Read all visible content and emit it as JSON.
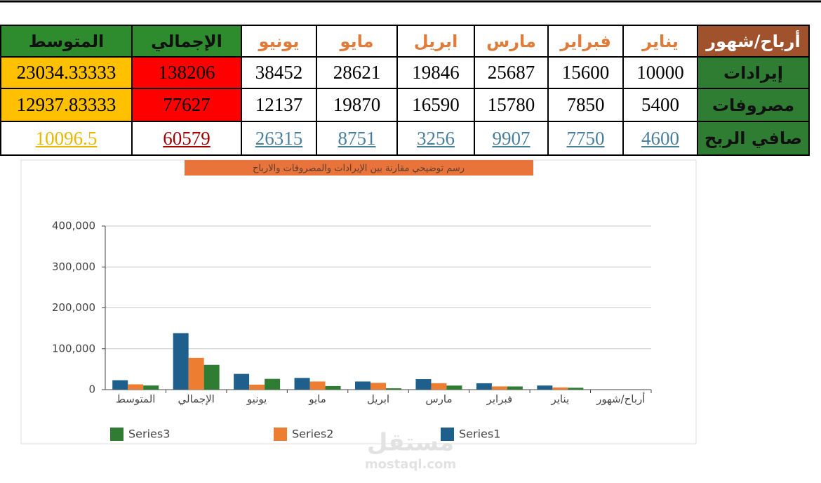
{
  "table": {
    "header": [
      "أرباح/شهور",
      "يناير",
      "فبراير",
      "مارس",
      "ابريل",
      "مايو",
      "يونيو",
      "الإجمالي",
      "المتوسط"
    ],
    "rows": [
      [
        "إيرادات",
        10000,
        15600,
        25687,
        19846,
        28621,
        38452,
        138206,
        23034.33333
      ],
      [
        "مصروفات",
        5400,
        7850,
        15780,
        16590,
        19870,
        12137,
        77627,
        12937.83333
      ],
      [
        "صافي الربح",
        4600,
        7750,
        9907,
        3256,
        8751,
        26315,
        60579,
        10096.5
      ]
    ]
  },
  "chart_data": {
    "type": "bar",
    "title": "رسم توضيحي مقارنة بين الإيرادات والمصروفات والارباح",
    "categories": [
      "المتوسط",
      "الإجمالي",
      "يونيو",
      "مايو",
      "ابريل",
      "مارس",
      "فبراير",
      "يناير",
      "أرباح/شهور"
    ],
    "series": [
      {
        "name": "Series1",
        "color": "#1f5f8b",
        "values": [
          23034.33333,
          138206,
          38452,
          28621,
          19846,
          25687,
          15600,
          10000,
          null
        ]
      },
      {
        "name": "Series2",
        "color": "#ed7d31",
        "values": [
          12937.83333,
          77627,
          12137,
          19870,
          16590,
          15780,
          7850,
          5400,
          null
        ]
      },
      {
        "name": "Series3",
        "color": "#2e7d32",
        "values": [
          10096.5,
          60579,
          26315,
          8751,
          3256,
          9907,
          7750,
          4600,
          null
        ]
      }
    ],
    "ylim": [
      0,
      400000
    ],
    "yticks": [
      0,
      {
        "value": 100000,
        "label": "100,000"
      },
      {
        "value": 200000,
        "label": "200,000"
      },
      {
        "value": 300000,
        "label": "300,000"
      },
      {
        "value": 400000,
        "label": "400,000"
      }
    ],
    "grid": true
  },
  "watermark": {
    "logo": "مستقل",
    "site": "mostaql.com"
  }
}
